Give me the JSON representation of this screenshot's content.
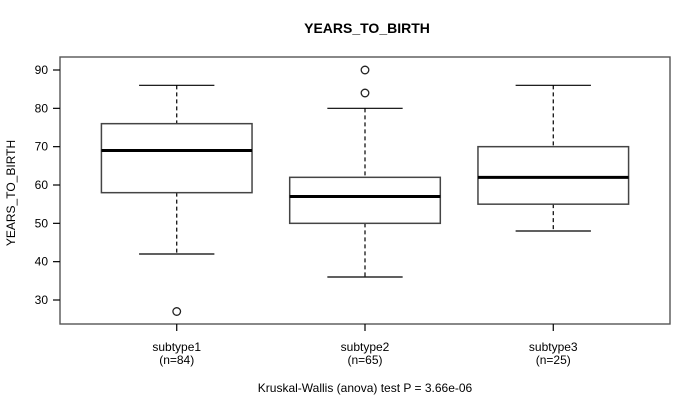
{
  "chart_data": {
    "type": "boxplot",
    "title": "YEARS_TO_BIRTH",
    "ylabel": "YEARS_TO_BIRTH",
    "caption": "Kruskal-Wallis (anova) test P = 3.66e-06",
    "ylim": [
      23,
      94
    ],
    "yticks": [
      30,
      40,
      50,
      60,
      70,
      80,
      90
    ],
    "categories": [
      "subtype1",
      "subtype2",
      "subtype3"
    ],
    "grid": "off",
    "groups": [
      {
        "label": "subtype1",
        "n_label": "(n=84)",
        "whisker_low": 42,
        "q1": 58,
        "median": 69,
        "q3": 76,
        "whisker_high": 86,
        "outliers": [
          27
        ]
      },
      {
        "label": "subtype2",
        "n_label": "(n=65)",
        "whisker_low": 36,
        "q1": 50,
        "median": 57,
        "q3": 62,
        "whisker_high": 80,
        "outliers": [
          84,
          90
        ]
      },
      {
        "label": "subtype3",
        "n_label": "(n=25)",
        "whisker_low": 48,
        "q1": 55,
        "median": 62,
        "q3": 70,
        "whisker_high": 86,
        "outliers": []
      }
    ],
    "colors": {
      "line": "#000000",
      "box_border": "#444444",
      "plot_border": "#555555",
      "box_fill": "#ffffff",
      "background": "#ffffff",
      "text": "#000000"
    }
  }
}
